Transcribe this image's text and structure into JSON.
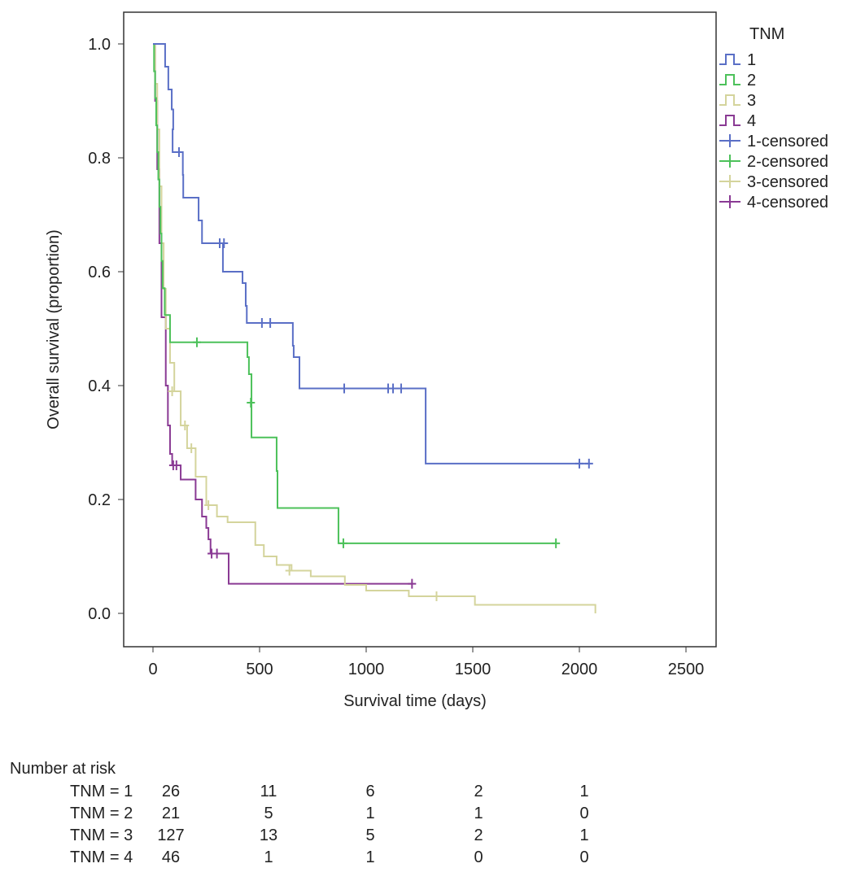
{
  "chart_data": {
    "type": "line",
    "subtype": "kaplan-meier",
    "xlabel": "Survival time (days)",
    "ylabel": "Overall survival (proportion)",
    "xlim": [
      -140,
      2600
    ],
    "ylim": [
      -0.055,
      1.055
    ],
    "xticks": [
      0,
      500,
      1000,
      1500,
      2000,
      2500
    ],
    "yticks": [
      "0.0",
      "0.2",
      "0.4",
      "0.6",
      "0.8",
      "1.0"
    ],
    "legend_title": "TNM",
    "legend_position": "right-outside",
    "series": [
      {
        "name": "1",
        "censored_label": "1-censored",
        "color": "#5a6fc6",
        "steps": [
          [
            0,
            1
          ],
          [
            57,
            0.96
          ],
          [
            72,
            0.92
          ],
          [
            88,
            0.885
          ],
          [
            95,
            0.85
          ],
          [
            92,
            0.81
          ],
          [
            140,
            0.77
          ],
          [
            142,
            0.73
          ],
          [
            214,
            0.69
          ],
          [
            230,
            0.65
          ],
          [
            328,
            0.6
          ],
          [
            420,
            0.58
          ],
          [
            435,
            0.54
          ],
          [
            440,
            0.51
          ],
          [
            656,
            0.47
          ],
          [
            660,
            0.45
          ],
          [
            687,
            0.395
          ],
          [
            1279,
            0.263
          ],
          [
            2050,
            0.263
          ]
        ],
        "censored": [
          [
            122,
            0.81
          ],
          [
            313,
            0.65
          ],
          [
            333,
            0.65
          ],
          [
            511,
            0.51
          ],
          [
            550,
            0.51
          ],
          [
            897,
            0.395
          ],
          [
            1103,
            0.395
          ],
          [
            1126,
            0.395
          ],
          [
            1164,
            0.395
          ],
          [
            2000,
            0.263
          ],
          [
            2045,
            0.263
          ]
        ]
      },
      {
        "name": "2",
        "censored_label": "2-censored",
        "color": "#4cc15a",
        "steps": [
          [
            0,
            1
          ],
          [
            5,
            0.952
          ],
          [
            10,
            0.905
          ],
          [
            15,
            0.857
          ],
          [
            20,
            0.81
          ],
          [
            25,
            0.762
          ],
          [
            30,
            0.714
          ],
          [
            35,
            0.667
          ],
          [
            40,
            0.619
          ],
          [
            45,
            0.571
          ],
          [
            55,
            0.524
          ],
          [
            80,
            0.476
          ],
          [
            443,
            0.45
          ],
          [
            450,
            0.42
          ],
          [
            462,
            0.309
          ],
          [
            580,
            0.25
          ],
          [
            584,
            0.185
          ],
          [
            870,
            0.123
          ],
          [
            1890,
            0.123
          ]
        ],
        "censored": [
          [
            206,
            0.476
          ],
          [
            459,
            0.37
          ],
          [
            893,
            0.123
          ],
          [
            1890,
            0.123
          ]
        ]
      },
      {
        "name": "3",
        "censored_label": "3-censored",
        "color": "#d4d49c",
        "steps": [
          [
            0,
            1
          ],
          [
            10,
            0.93
          ],
          [
            20,
            0.85
          ],
          [
            30,
            0.75
          ],
          [
            40,
            0.65
          ],
          [
            50,
            0.57
          ],
          [
            60,
            0.5
          ],
          [
            80,
            0.44
          ],
          [
            100,
            0.39
          ],
          [
            130,
            0.33
          ],
          [
            160,
            0.29
          ],
          [
            200,
            0.24
          ],
          [
            250,
            0.19
          ],
          [
            300,
            0.17
          ],
          [
            350,
            0.16
          ],
          [
            440,
            0.16
          ],
          [
            480,
            0.12
          ],
          [
            520,
            0.1
          ],
          [
            580,
            0.085
          ],
          [
            650,
            0.075
          ],
          [
            740,
            0.065
          ],
          [
            900,
            0.05
          ],
          [
            1000,
            0.04
          ],
          [
            1200,
            0.03
          ],
          [
            1510,
            0.015
          ],
          [
            2070,
            0.015
          ],
          [
            2075,
            0.0
          ]
        ],
        "censored": [
          [
            90,
            0.39
          ],
          [
            150,
            0.33
          ],
          [
            180,
            0.29
          ],
          [
            260,
            0.19
          ],
          [
            640,
            0.075
          ],
          [
            1330,
            0.03
          ]
        ]
      },
      {
        "name": "4",
        "censored_label": "4-censored",
        "color": "#8a3a94",
        "steps": [
          [
            0,
            1
          ],
          [
            10,
            0.9
          ],
          [
            20,
            0.78
          ],
          [
            30,
            0.65
          ],
          [
            40,
            0.52
          ],
          [
            60,
            0.4
          ],
          [
            70,
            0.33
          ],
          [
            80,
            0.28
          ],
          [
            90,
            0.26
          ],
          [
            130,
            0.235
          ],
          [
            200,
            0.2
          ],
          [
            230,
            0.17
          ],
          [
            250,
            0.15
          ],
          [
            260,
            0.13
          ],
          [
            270,
            0.105
          ],
          [
            355,
            0.052
          ],
          [
            1215,
            0.052
          ]
        ],
        "censored": [
          [
            95,
            0.26
          ],
          [
            110,
            0.26
          ],
          [
            275,
            0.105
          ],
          [
            300,
            0.105
          ],
          [
            1215,
            0.052
          ]
        ]
      }
    ]
  },
  "risk_table": {
    "title": "Number at risk",
    "rows": [
      {
        "label": "TNM = 1",
        "values": [
          "26",
          "11",
          "6",
          "2",
          "1"
        ]
      },
      {
        "label": "TNM = 2",
        "values": [
          "21",
          "5",
          "1",
          "1",
          "0"
        ]
      },
      {
        "label": "TNM = 3",
        "values": [
          "127",
          "13",
          "5",
          "2",
          "1"
        ]
      },
      {
        "label": "TNM = 4",
        "values": [
          "46",
          "1",
          "1",
          "0",
          "0"
        ]
      }
    ]
  }
}
